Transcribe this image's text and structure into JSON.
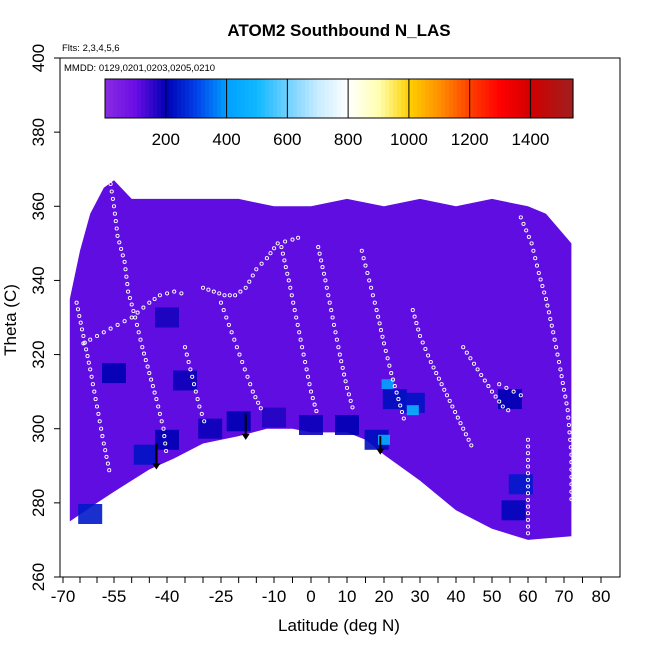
{
  "chart_data": {
    "type": "heatmap",
    "title": "ATOM2 Southbound N_LAS",
    "notes": [
      "Flts: 2,3,4,5,6",
      "MMDD: 0129,0201,0203,0205,0210"
    ],
    "xlabel": "Latitude (deg N)",
    "ylabel": "Theta (C)",
    "xlim": [
      -70,
      80
    ],
    "ylim": [
      260,
      400
    ],
    "x_ticks": [
      -70,
      -55,
      -40,
      -25,
      -10,
      0,
      10,
      20,
      30,
      40,
      50,
      60,
      70,
      80
    ],
    "x_tick_labels": [
      "-70",
      "-55",
      "-40",
      "-25",
      "-10",
      "0",
      "10",
      "20",
      "30",
      "40",
      "50",
      "60",
      "70",
      "80"
    ],
    "y_ticks": [
      260,
      280,
      300,
      320,
      340,
      360,
      380,
      400
    ],
    "y_tick_labels": [
      "260",
      "280",
      "300",
      "320",
      "340",
      "360",
      "380",
      "400"
    ],
    "colorbar": {
      "range": [
        0,
        1540
      ],
      "ticks": [
        200,
        400,
        600,
        800,
        1000,
        1200,
        1400
      ],
      "tick_labels": [
        "200",
        "400",
        "600",
        "800",
        "1000",
        "1200",
        "1400"
      ],
      "stops": [
        {
          "v": 0,
          "c": "#8a2be2"
        },
        {
          "v": 100,
          "c": "#6a0ee6"
        },
        {
          "v": 200,
          "c": "#0000b4"
        },
        {
          "v": 300,
          "c": "#0040e8"
        },
        {
          "v": 400,
          "c": "#00a0ff"
        },
        {
          "v": 500,
          "c": "#10b8ff"
        },
        {
          "v": 600,
          "c": "#70d0ff"
        },
        {
          "v": 700,
          "c": "#c8ecff"
        },
        {
          "v": 800,
          "c": "#ffffff"
        },
        {
          "v": 900,
          "c": "#ffffb0"
        },
        {
          "v": 1000,
          "c": "#ffd000"
        },
        {
          "v": 1100,
          "c": "#ff9000"
        },
        {
          "v": 1200,
          "c": "#ff4000"
        },
        {
          "v": 1300,
          "c": "#ff0000"
        },
        {
          "v": 1400,
          "c": "#d00000"
        },
        {
          "v": 1540,
          "c": "#a02020"
        }
      ]
    },
    "background_value": 110,
    "field_outline": [
      [
        -68,
        275
      ],
      [
        -60,
        280
      ],
      [
        -55,
        283
      ],
      [
        -45,
        289
      ],
      [
        -38,
        292
      ],
      [
        -30,
        296
      ],
      [
        -20,
        298
      ],
      [
        -12,
        300
      ],
      [
        -5,
        300
      ],
      [
        0,
        299
      ],
      [
        10,
        299
      ],
      [
        15,
        297
      ],
      [
        20,
        293
      ],
      [
        30,
        286
      ],
      [
        40,
        278
      ],
      [
        50,
        273
      ],
      [
        60,
        270
      ],
      [
        72,
        271
      ],
      [
        72,
        350
      ],
      [
        65,
        358
      ],
      [
        60,
        360
      ],
      [
        50,
        362
      ],
      [
        40,
        360
      ],
      [
        30,
        362
      ],
      [
        20,
        360
      ],
      [
        10,
        362
      ],
      [
        0,
        360
      ],
      [
        -10,
        360
      ],
      [
        -20,
        362
      ],
      [
        -30,
        362
      ],
      [
        -40,
        362
      ],
      [
        -50,
        362
      ],
      [
        -55,
        367
      ],
      [
        -58,
        365
      ],
      [
        -62,
        358
      ],
      [
        -65,
        348
      ],
      [
        -68,
        335
      ]
    ],
    "high_cells": [
      {
        "lat": -46,
        "theta": 293,
        "value": 230
      },
      {
        "lat": -40,
        "theta": 297,
        "value": 200
      },
      {
        "lat": -28,
        "theta": 300,
        "value": 190
      },
      {
        "lat": -20,
        "theta": 302,
        "value": 200
      },
      {
        "lat": -10,
        "theta": 303,
        "value": 170
      },
      {
        "lat": 0,
        "theta": 301,
        "value": 190
      },
      {
        "lat": 10,
        "theta": 301,
        "value": 200
      },
      {
        "lat": 18,
        "theta": 297,
        "value": 220
      },
      {
        "lat": 20,
        "theta": 297,
        "value": 460
      },
      {
        "lat": 21,
        "theta": 312,
        "value": 420
      },
      {
        "lat": 23,
        "theta": 308,
        "value": 220
      },
      {
        "lat": 28,
        "theta": 307,
        "value": 230
      },
      {
        "lat": 28,
        "theta": 305,
        "value": 480
      },
      {
        "lat": 58,
        "theta": 285,
        "value": 240
      },
      {
        "lat": 56,
        "theta": 278,
        "value": 210
      },
      {
        "lat": 55,
        "theta": 308,
        "value": 200
      },
      {
        "lat": -62,
        "theta": 277,
        "value": 240
      },
      {
        "lat": -55,
        "theta": 315,
        "value": 200
      },
      {
        "lat": -40,
        "theta": 330,
        "value": 180
      },
      {
        "lat": -35,
        "theta": 313,
        "value": 190
      }
    ],
    "arrows": [
      {
        "lat": -43,
        "theta_top": 296,
        "theta_tip": 289
      },
      {
        "lat": -18,
        "theta_top": 304,
        "theta_tip": 297
      },
      {
        "lat": 19,
        "theta_top": 298,
        "theta_tip": 293
      }
    ],
    "flight_tracks": [
      [
        [
          -56,
          366
        ],
        [
          -55,
          360
        ],
        [
          -54,
          352
        ],
        [
          -52,
          345
        ],
        [
          -51,
          337
        ],
        [
          -49,
          330
        ],
        [
          -47,
          322
        ],
        [
          -45,
          315
        ],
        [
          -43,
          308
        ],
        [
          -41,
          300
        ],
        [
          -40,
          292
        ]
      ],
      [
        [
          -64,
          323
        ],
        [
          -60,
          325
        ],
        [
          -56,
          327
        ],
        [
          -50,
          330
        ],
        [
          -45,
          334
        ],
        [
          -42,
          336
        ],
        [
          -38,
          337
        ],
        [
          -34,
          336
        ]
      ],
      [
        [
          -30,
          338
        ],
        [
          -27,
          337
        ],
        [
          -24,
          336
        ],
        [
          -21,
          336
        ],
        [
          -18,
          338
        ],
        [
          -15,
          343
        ],
        [
          -12,
          346
        ],
        [
          -9,
          350
        ],
        [
          -5,
          351
        ],
        [
          -2,
          352
        ]
      ],
      [
        [
          -25,
          334
        ],
        [
          -22,
          326
        ],
        [
          -19,
          318
        ],
        [
          -16,
          310
        ],
        [
          -13,
          304
        ]
      ],
      [
        [
          -8,
          349
        ],
        [
          -6,
          340
        ],
        [
          -4,
          330
        ],
        [
          -2,
          320
        ],
        [
          0,
          310
        ],
        [
          2,
          303
        ]
      ],
      [
        [
          2,
          349
        ],
        [
          4,
          340
        ],
        [
          6,
          330
        ],
        [
          8,
          320
        ],
        [
          10,
          311
        ],
        [
          12,
          304
        ]
      ],
      [
        [
          14,
          348
        ],
        [
          16,
          340
        ],
        [
          18,
          332
        ],
        [
          20,
          323
        ],
        [
          22,
          315
        ],
        [
          24,
          308
        ],
        [
          26,
          301
        ]
      ],
      [
        [
          28,
          332
        ],
        [
          30,
          325
        ],
        [
          33,
          318
        ],
        [
          36,
          312
        ],
        [
          39,
          306
        ],
        [
          42,
          300
        ],
        [
          45,
          294
        ]
      ],
      [
        [
          42,
          322
        ],
        [
          46,
          316
        ],
        [
          50,
          310
        ],
        [
          53,
          306
        ],
        [
          56,
          304
        ]
      ],
      [
        [
          52,
          312
        ],
        [
          56,
          310
        ],
        [
          60,
          308
        ]
      ],
      [
        [
          58,
          357
        ],
        [
          61,
          350
        ],
        [
          63,
          342
        ],
        [
          65,
          335
        ],
        [
          67,
          326
        ],
        [
          69,
          316
        ],
        [
          71,
          305
        ],
        [
          72,
          293
        ],
        [
          72,
          279
        ]
      ],
      [
        [
          -66,
          334
        ],
        [
          -64,
          325
        ],
        [
          -62,
          316
        ],
        [
          -60,
          306
        ],
        [
          -58,
          296
        ],
        [
          -56,
          287
        ]
      ],
      [
        [
          -35,
          322
        ],
        [
          -33,
          314
        ],
        [
          -31,
          306
        ],
        [
          -29,
          300
        ]
      ],
      [
        [
          60,
          297
        ],
        [
          60,
          288
        ],
        [
          60,
          279
        ],
        [
          60,
          270
        ]
      ]
    ]
  }
}
